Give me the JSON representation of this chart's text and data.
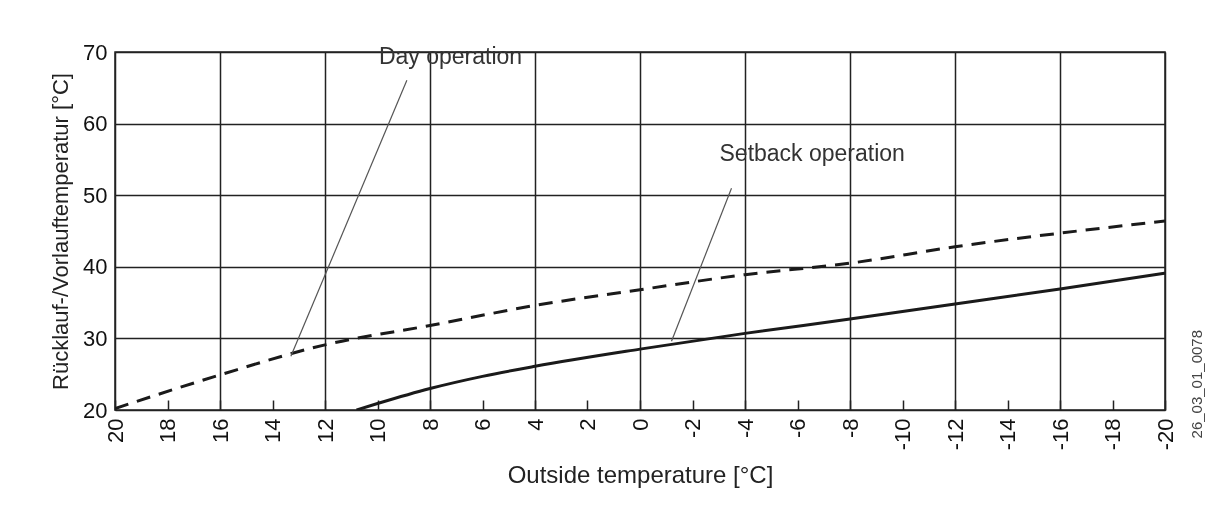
{
  "chart_data": {
    "type": "line",
    "xlabel": "Outside temperature [°C]",
    "ylabel": "Rücklauf-/Vorlauftemperatur [°C]",
    "xlim": [
      20,
      -20
    ],
    "xticks": [
      20,
      18,
      16,
      14,
      12,
      10,
      8,
      6,
      4,
      2,
      0,
      -2,
      -4,
      -6,
      -8,
      -10,
      -12,
      -14,
      -16,
      -18,
      -20
    ],
    "ylim": [
      20,
      70
    ],
    "yticks": [
      20,
      30,
      40,
      50,
      60,
      70
    ],
    "grid": true,
    "series": [
      {
        "color": "#1a1a1a",
        "line_style": "dashed",
        "x": [
          20,
          16,
          12,
          8,
          4,
          0,
          -4,
          -8,
          -12,
          -16,
          -20
        ],
        "values": [
          20.2,
          24.9,
          29.1,
          31.8,
          34.6,
          36.8,
          38.9,
          40.5,
          42.8,
          44.7,
          46.4
        ]
      },
      {
        "color": "#1a1a1a",
        "line_style": "solid",
        "x": [
          10.8,
          10,
          8,
          6,
          4,
          0,
          -4,
          -8,
          -12,
          -16,
          -20
        ],
        "values": [
          20,
          20.9,
          23,
          24.7,
          26.1,
          28.5,
          30.7,
          32.7,
          34.8,
          36.9,
          39.1
        ]
      }
    ],
    "annotations": [
      {
        "text": "Day operation",
        "x": 13.3,
        "y": 27.5
      },
      {
        "text": "Setback operation",
        "x": -1.2,
        "y": 29.6
      },
      "26_03_01_0078"
    ]
  }
}
